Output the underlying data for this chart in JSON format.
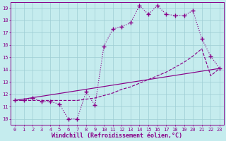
{
  "xlabel": "Windchill (Refroidissement éolien,°C)",
  "background_color": "#c5ecee",
  "line_color": "#880088",
  "grid_color": "#9ecdd4",
  "x_hours": [
    0,
    1,
    2,
    3,
    4,
    5,
    6,
    7,
    8,
    9,
    10,
    11,
    12,
    13,
    14,
    15,
    16,
    17,
    18,
    19,
    20,
    21,
    22,
    23
  ],
  "series1": [
    11.5,
    11.5,
    11.7,
    11.4,
    11.4,
    11.2,
    10.0,
    10.0,
    12.2,
    11.1,
    15.9,
    17.3,
    17.5,
    17.8,
    19.2,
    18.5,
    19.2,
    18.5,
    18.4,
    18.4,
    18.8,
    16.5,
    15.1,
    14.1
  ],
  "series2": [
    11.5,
    11.5,
    11.5,
    11.5,
    11.5,
    11.5,
    11.5,
    11.5,
    11.6,
    11.7,
    11.9,
    12.1,
    12.4,
    12.6,
    12.9,
    13.2,
    13.5,
    13.8,
    14.2,
    14.6,
    15.1,
    15.7,
    13.5,
    14.1
  ],
  "series3_x": [
    0,
    23
  ],
  "series3_y": [
    11.5,
    14.1
  ],
  "xlim": [
    -0.5,
    23.5
  ],
  "ylim": [
    9.5,
    19.5
  ],
  "yticks": [
    10,
    11,
    12,
    13,
    14,
    15,
    16,
    17,
    18,
    19
  ],
  "xticks": [
    0,
    1,
    2,
    3,
    4,
    5,
    6,
    7,
    8,
    9,
    10,
    11,
    12,
    13,
    14,
    15,
    16,
    17,
    18,
    19,
    20,
    21,
    22,
    23
  ],
  "tick_fontsize": 5.0,
  "xlabel_fontsize": 6.0,
  "marker_size": 2.2,
  "line_width": 0.85
}
